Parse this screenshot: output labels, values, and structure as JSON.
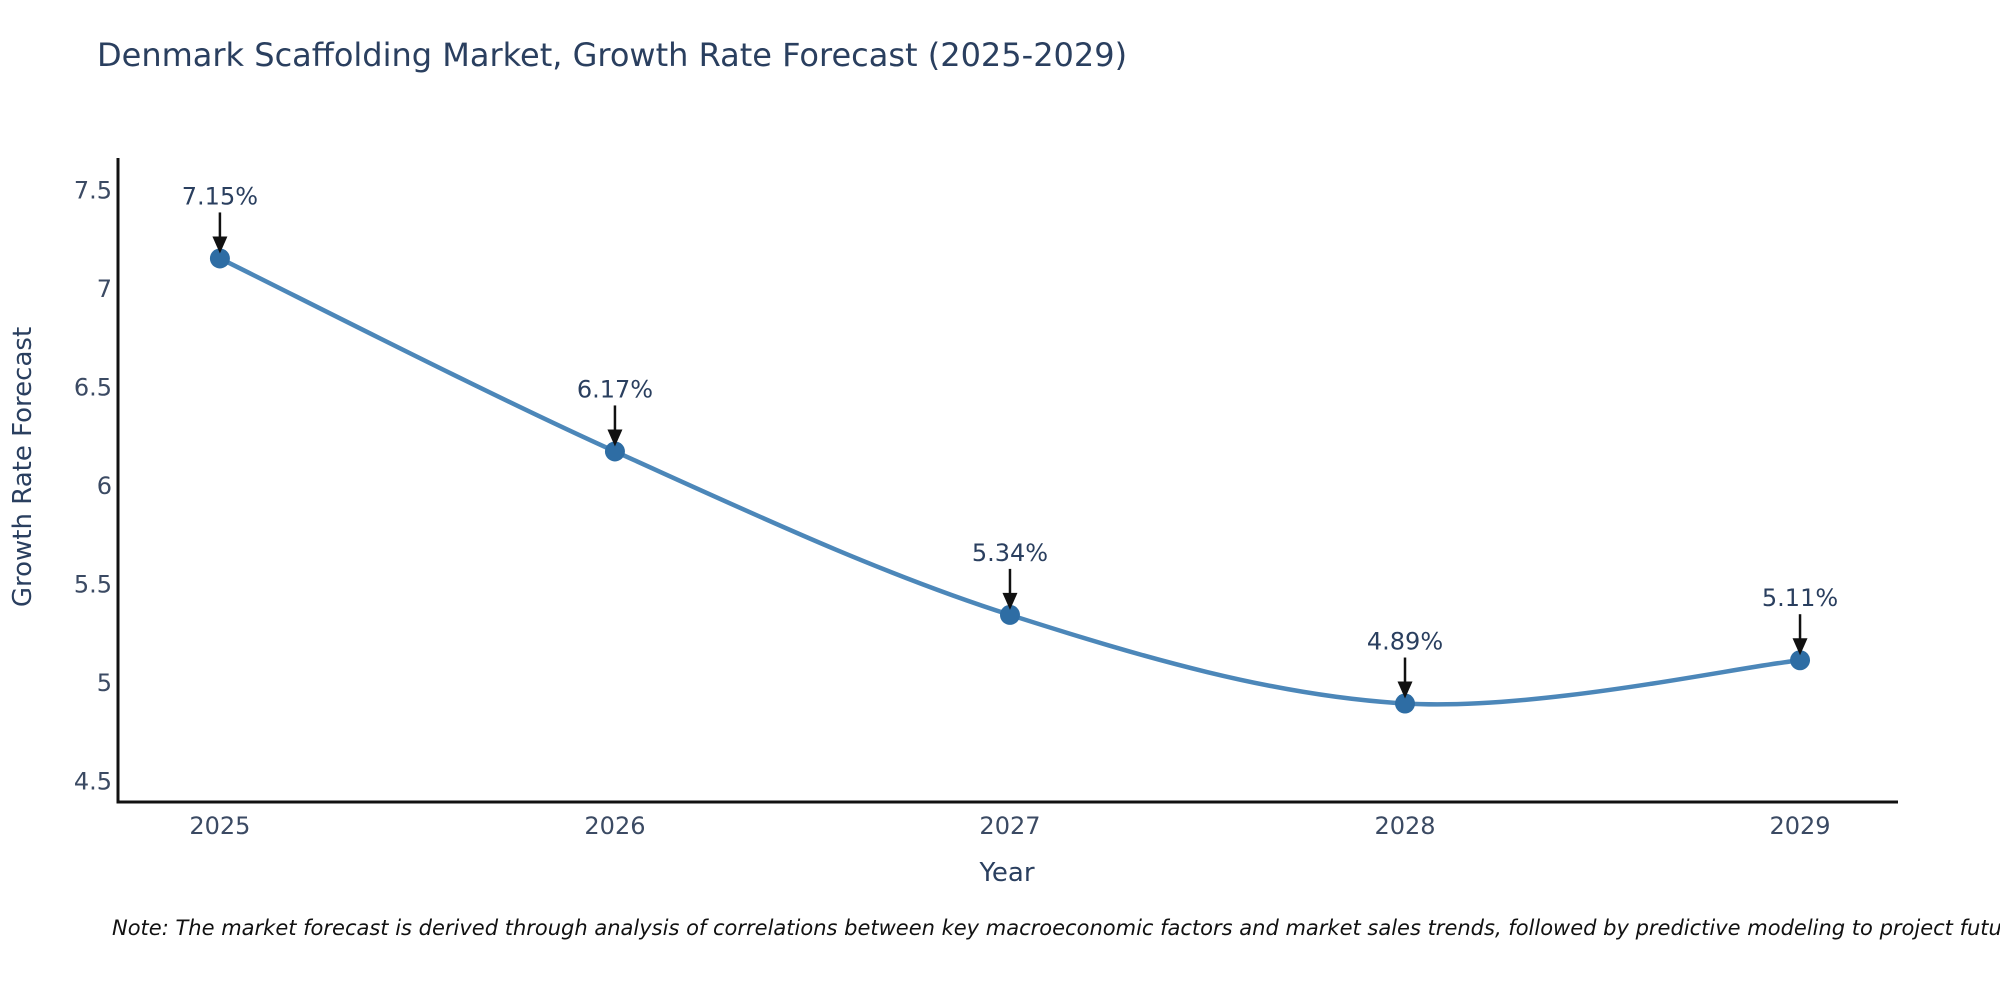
{
  "title": "Denmark Scaffolding Market, Growth Rate Forecast (2025-2029)",
  "note": "Note: The market forecast is derived through analysis of correlations between key macroeconomic factors and market sales trends, followed by predictive modeling to project future sales",
  "chart_data": {
    "type": "line",
    "title": "Denmark Scaffolding Market, Growth Rate Forecast (2025-2029)",
    "xlabel": "Year",
    "ylabel": "Growth Rate Forecast",
    "x": [
      2025,
      2026,
      2027,
      2028,
      2029
    ],
    "values": [
      7.15,
      6.17,
      5.34,
      4.89,
      5.11
    ],
    "point_labels": [
      "7.15%",
      "6.17%",
      "5.34%",
      "4.89%",
      "5.11%"
    ],
    "xticks": [
      "2025",
      "2026",
      "2027",
      "2028",
      "2029"
    ],
    "yticks": [
      4.5,
      5,
      5.5,
      6,
      6.5,
      7,
      7.5
    ],
    "ytick_labels": [
      "4.5",
      "5",
      "5.5",
      "6",
      "6.5",
      "7",
      "7.5"
    ],
    "xlim": [
      2024.742,
      2029.248
    ],
    "ylim": [
      4.39,
      7.66
    ],
    "grid": false,
    "legend_position": "none",
    "line_shape": "spline",
    "annotations_have_arrows": true,
    "colors": {
      "line": "#4c87b9",
      "marker": "#2e6da4",
      "axis": "#111111",
      "title_text": "#2a3f5f",
      "tick_text": "#3b4a63",
      "annotation_text": "#2a3f5f",
      "annotation_arrow": "#111111",
      "background": "#ffffff"
    }
  }
}
